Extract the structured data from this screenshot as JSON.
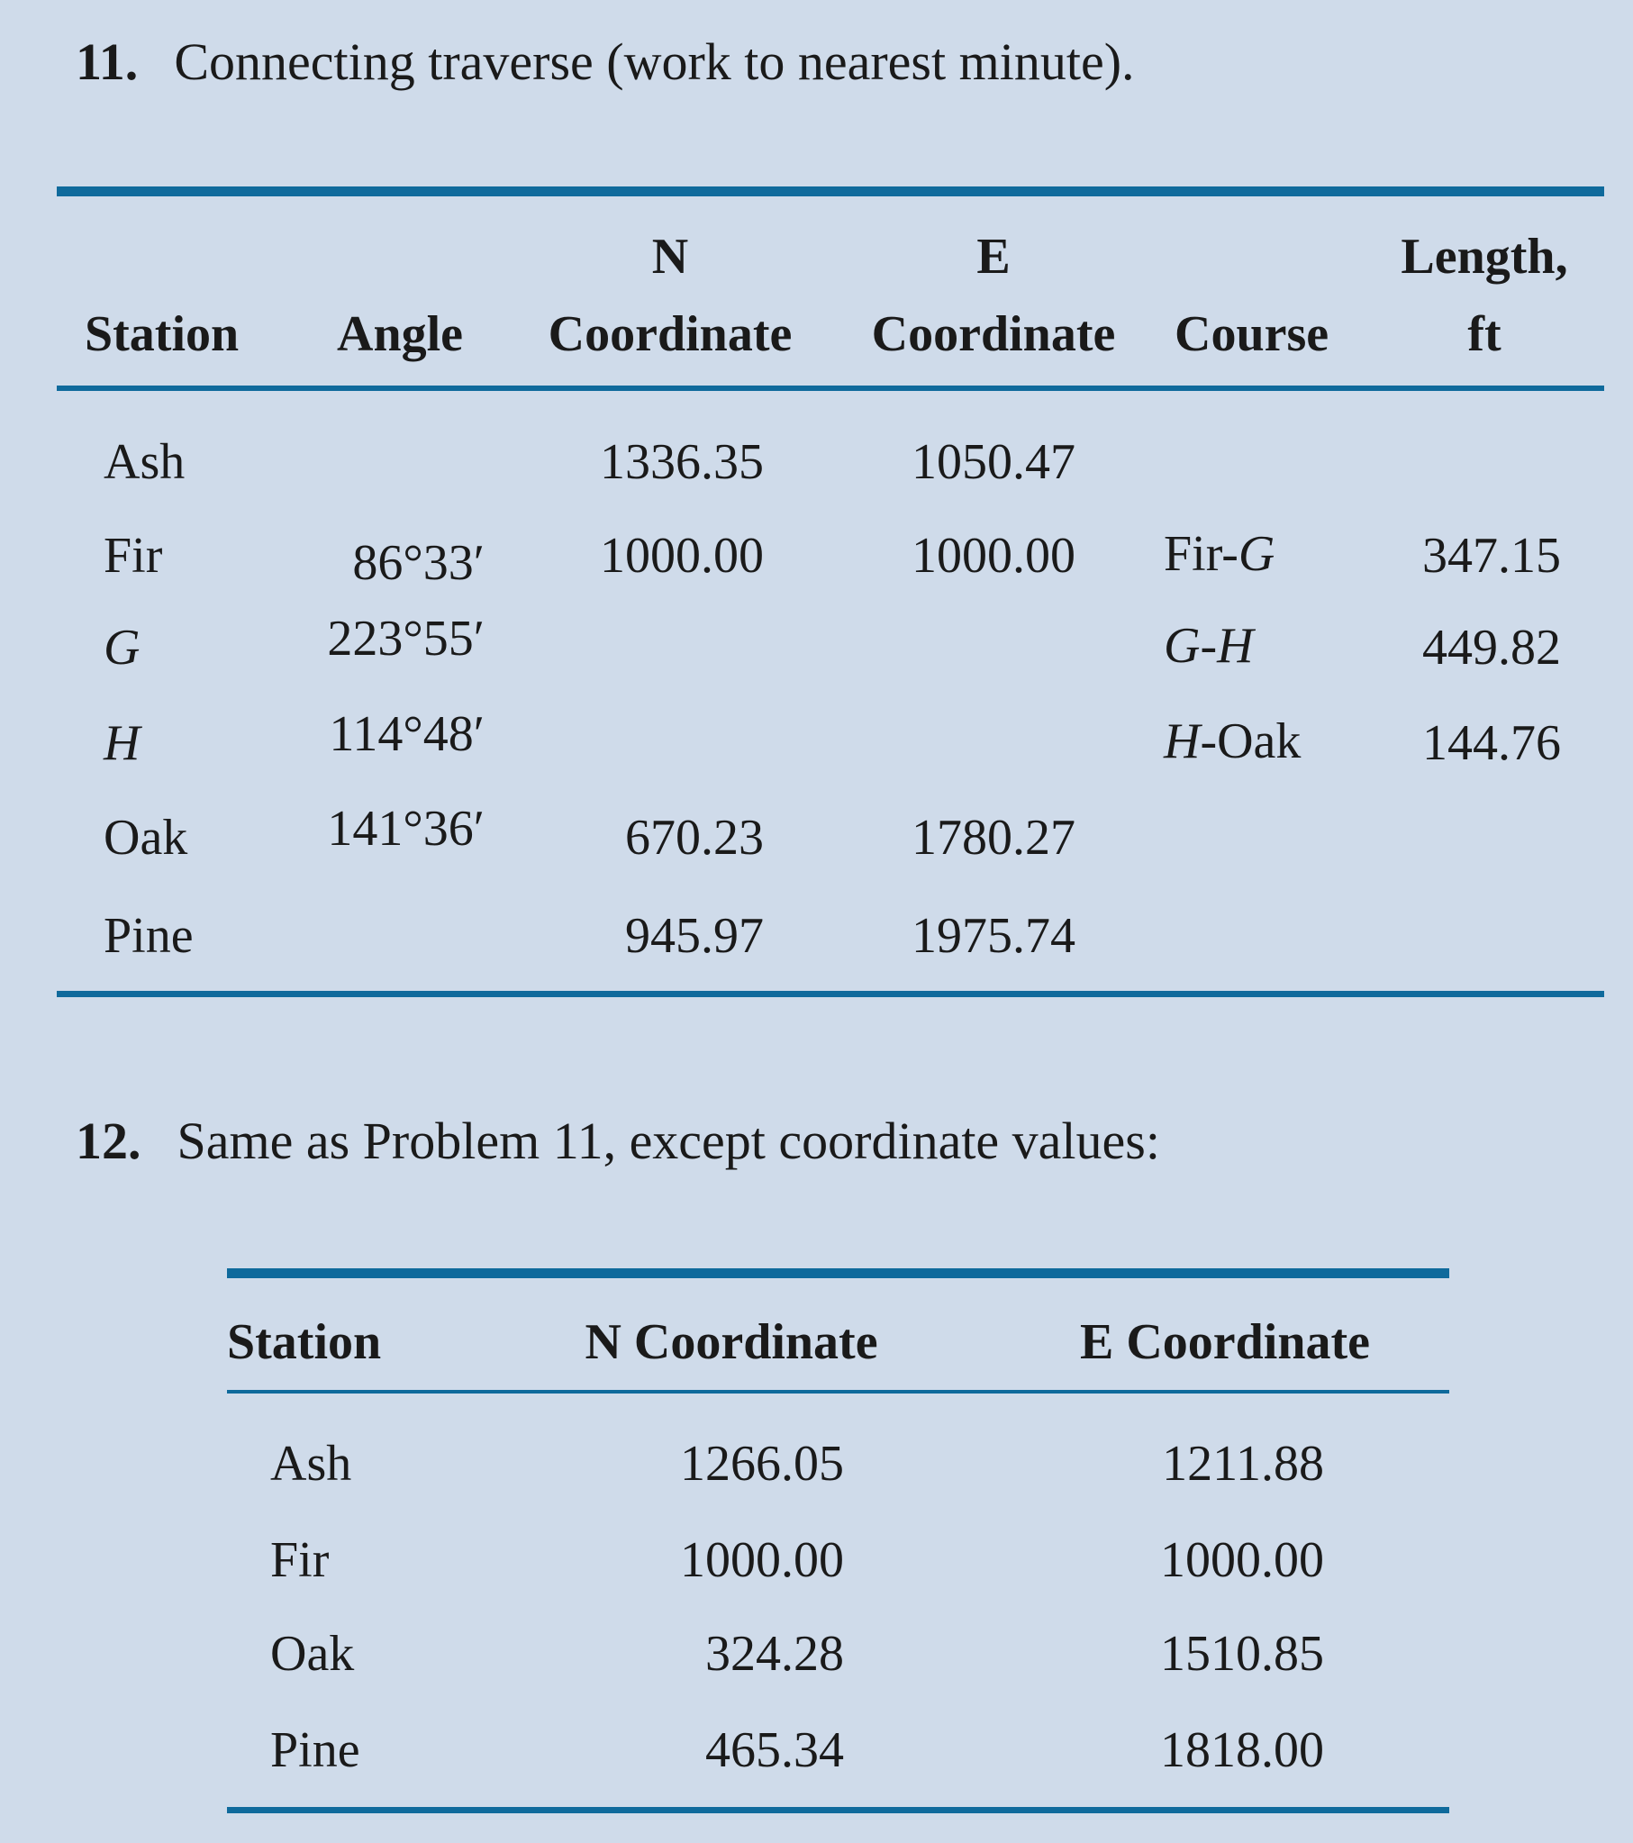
{
  "problem11": {
    "number": "11.",
    "text": "Connecting traverse (work to nearest minute).",
    "headers": {
      "station": "Station",
      "angle": "Angle",
      "n_top": "N",
      "n_bottom": "Coordinate",
      "e_top": "E",
      "e_bottom": "Coordinate",
      "course": "Course",
      "length_top": "Length,",
      "length_bottom": "ft"
    },
    "rows": [
      {
        "station": "Ash",
        "station_italic": false,
        "angle": "",
        "n": "1336.35",
        "e": "1050.47",
        "course": [],
        "length": ""
      },
      {
        "station": "Fir",
        "station_italic": false,
        "angle": "86°33′",
        "n": "1000.00",
        "e": "1000.00",
        "course": [
          {
            "t": "Fir-",
            "i": false
          },
          {
            "t": "G",
            "i": true
          }
        ],
        "length": "347.15"
      },
      {
        "station": "G",
        "station_italic": true,
        "angle": "223°55′",
        "n": "",
        "e": "",
        "course": [
          {
            "t": "G-H",
            "i": true
          }
        ],
        "length": "449.82"
      },
      {
        "station": "H",
        "station_italic": true,
        "angle": "114°48′",
        "n": "",
        "e": "",
        "course": [
          {
            "t": "H",
            "i": true
          },
          {
            "t": "-Oak",
            "i": false
          }
        ],
        "length": "144.76"
      },
      {
        "station": "Oak",
        "station_italic": false,
        "angle": "141°36′",
        "n": "670.23",
        "e": "1780.27",
        "course": [],
        "length": ""
      },
      {
        "station": "Pine",
        "station_italic": false,
        "angle": "",
        "n": "945.97",
        "e": "1975.74",
        "course": [],
        "length": ""
      }
    ]
  },
  "problem12": {
    "number": "12.",
    "text": "Same as Problem 11, except coordinate values:",
    "headers": {
      "station": "Station",
      "n": "N Coordinate",
      "e": "E Coordinate"
    },
    "rows": [
      {
        "station": "Ash",
        "n": "1266.05",
        "e": "1211.88"
      },
      {
        "station": "Fir",
        "n": "1000.00",
        "e": "1000.00"
      },
      {
        "station": "Oak",
        "n": "324.28",
        "e": "1510.85"
      },
      {
        "station": "Pine",
        "n": "465.34",
        "e": "1818.00"
      }
    ]
  },
  "colors": {
    "background": "#cfdbea",
    "rule": "#0f6a9c",
    "text": "#1a1a1a"
  }
}
